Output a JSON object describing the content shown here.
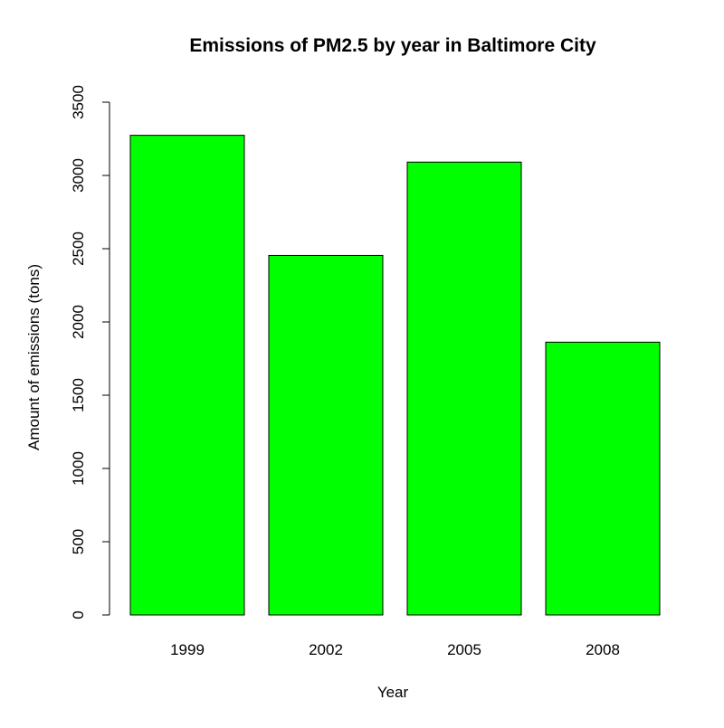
{
  "chart_data": {
    "type": "bar",
    "title": "Emissions of PM2.5 by year in Baltimore City",
    "xlabel": "Year",
    "ylabel": "Amount of emissions (tons)",
    "categories": [
      "1999",
      "2002",
      "2005",
      "2008"
    ],
    "values": [
      3274,
      2454,
      3091,
      1862
    ],
    "ylim": [
      0,
      3500
    ],
    "yticks": [
      0,
      500,
      1000,
      1500,
      2000,
      2500,
      3000,
      3500
    ],
    "grid": false,
    "legend": "none",
    "bar_color": "#00ff00",
    "bar_outline_color": "#000000"
  }
}
